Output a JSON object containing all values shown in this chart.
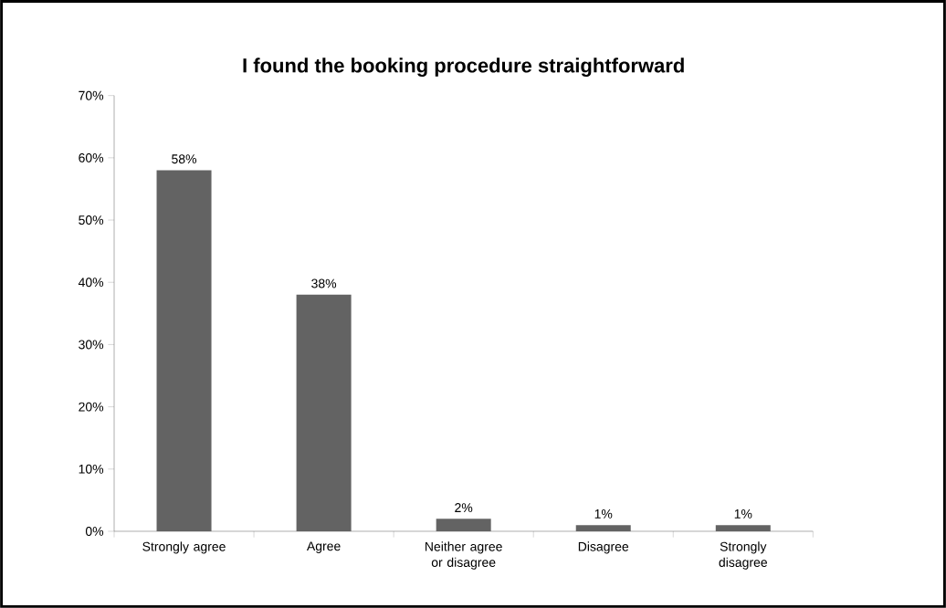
{
  "chart_data": {
    "type": "bar",
    "title": "I found the booking procedure straightforward",
    "categories": [
      "Strongly agree",
      "Agree",
      "Neither agree or disagree",
      "Disagree",
      "Strongly disagree"
    ],
    "values": [
      58,
      38,
      2,
      1,
      1
    ],
    "value_labels": [
      "58%",
      "38%",
      "2%",
      "1%",
      "1%"
    ],
    "color": "#636363",
    "ylim": [
      0,
      70
    ],
    "yticks": [
      {
        "value": 0,
        "label": "0%"
      },
      {
        "value": 10,
        "label": "10%"
      },
      {
        "value": 20,
        "label": "20%"
      },
      {
        "value": 30,
        "label": "30%"
      },
      {
        "value": 40,
        "label": "40%"
      },
      {
        "value": 50,
        "label": "50%"
      },
      {
        "value": 60,
        "label": "60%"
      },
      {
        "value": 70,
        "label": "70%"
      }
    ],
    "grid": false
  }
}
